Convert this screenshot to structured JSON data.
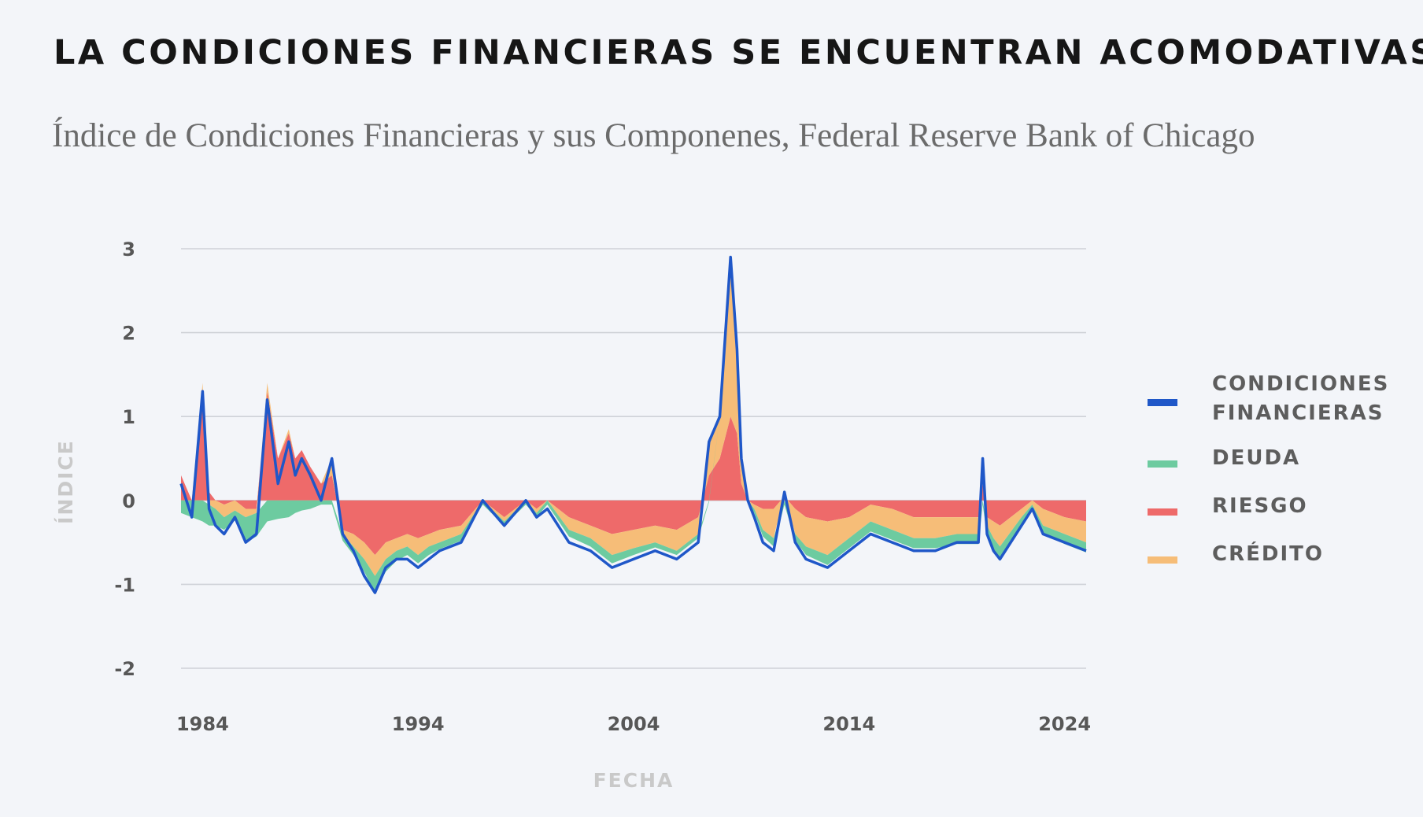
{
  "header": {
    "title": "LA CONDICIONES FINANCIERAS SE ENCUENTRAN ACOMODATIVAS",
    "subtitle": "Índice de Condiciones Financieras y sus Componenes, Federal Reserve Bank of Chicago"
  },
  "colors": {
    "condiciones": "#1f57c8",
    "deuda": "#6dcba0",
    "riesgo": "#ee6a6a",
    "credito": "#f6bd78",
    "grid": "#cfd2d8",
    "background": "#f3f5f9"
  },
  "legend": {
    "items": [
      {
        "label": "CONDICIONES FINANCIERAS",
        "color_key": "condiciones"
      },
      {
        "label": "DEUDA",
        "color_key": "deuda"
      },
      {
        "label": "RIESGO",
        "color_key": "riesgo"
      },
      {
        "label": "CRÉDITO",
        "color_key": "credito"
      }
    ]
  },
  "chart_data": {
    "type": "area",
    "title": "LA CONDICIONES FINANCIERAS SE ENCUENTRAN ACOMODATIVAS",
    "subtitle": "Índice de Condiciones Financieras y sus Componenes, Federal Reserve Bank of Chicago",
    "xlabel": "FECHA",
    "ylabel": "ÍNDICE",
    "xlim": [
      1983.0,
      2025.0
    ],
    "ylim": [
      -2,
      3
    ],
    "x_ticks": [
      1984,
      1994,
      2004,
      2014,
      2024
    ],
    "y_ticks": [
      3,
      2,
      1,
      0,
      -1,
      -2
    ],
    "y_tick_labels": [
      "3",
      "2",
      "1",
      "0",
      "-1",
      "-2"
    ],
    "grid": true,
    "legend_position": "right",
    "x": [
      1983.0,
      1983.5,
      1984.0,
      1984.3,
      1984.6,
      1985.0,
      1985.5,
      1986.0,
      1986.5,
      1987.0,
      1987.5,
      1988.0,
      1988.3,
      1988.6,
      1989.0,
      1989.5,
      1990.0,
      1990.5,
      1991.0,
      1991.5,
      1992.0,
      1992.5,
      1993.0,
      1993.5,
      1994.0,
      1994.5,
      1995.0,
      1996.0,
      1997.0,
      1998.0,
      1999.0,
      1999.5,
      2000.0,
      2001.0,
      2002.0,
      2003.0,
      2004.0,
      2005.0,
      2006.0,
      2007.0,
      2007.5,
      2008.0,
      2008.5,
      2008.8,
      2009.0,
      2009.3,
      2009.6,
      2010.0,
      2010.5,
      2011.0,
      2011.5,
      2012.0,
      2013.0,
      2014.0,
      2015.0,
      2016.0,
      2017.0,
      2018.0,
      2019.0,
      2020.0,
      2020.2,
      2020.4,
      2020.7,
      2021.0,
      2022.0,
      2022.5,
      2023.0,
      2024.0,
      2025.0
    ],
    "series": [
      {
        "name": "CONDICIONES FINANCIERAS",
        "values": [
          0.2,
          -0.2,
          1.3,
          -0.1,
          -0.3,
          -0.4,
          -0.2,
          -0.5,
          -0.4,
          1.2,
          0.2,
          0.7,
          0.3,
          0.5,
          0.3,
          0.0,
          0.5,
          -0.4,
          -0.6,
          -0.9,
          -1.1,
          -0.8,
          -0.7,
          -0.7,
          -0.8,
          -0.7,
          -0.6,
          -0.5,
          0.0,
          -0.3,
          0.0,
          -0.2,
          -0.1,
          -0.5,
          -0.6,
          -0.8,
          -0.7,
          -0.6,
          -0.7,
          -0.5,
          0.7,
          1.0,
          2.9,
          1.8,
          0.5,
          0.0,
          -0.2,
          -0.5,
          -0.6,
          0.1,
          -0.5,
          -0.7,
          -0.8,
          -0.6,
          -0.4,
          -0.5,
          -0.6,
          -0.6,
          -0.5,
          -0.5,
          0.5,
          -0.4,
          -0.6,
          -0.7,
          -0.3,
          -0.1,
          -0.4,
          -0.5,
          -0.6
        ]
      },
      {
        "name": "DEUDA",
        "values": [
          -0.15,
          -0.2,
          -0.25,
          -0.25,
          -0.2,
          -0.15,
          -0.12,
          -0.3,
          -0.28,
          -0.25,
          -0.22,
          -0.2,
          -0.15,
          -0.12,
          -0.1,
          -0.05,
          -0.05,
          -0.08,
          -0.1,
          -0.15,
          -0.2,
          -0.15,
          -0.12,
          -0.1,
          -0.1,
          -0.1,
          -0.08,
          -0.08,
          -0.05,
          -0.05,
          -0.05,
          -0.05,
          -0.05,
          -0.08,
          -0.1,
          -0.1,
          -0.08,
          -0.06,
          -0.05,
          -0.05,
          -0.02,
          0.0,
          0.0,
          0.0,
          0.0,
          -0.02,
          -0.05,
          -0.08,
          -0.1,
          -0.05,
          -0.08,
          -0.1,
          -0.12,
          -0.12,
          -0.12,
          -0.12,
          -0.12,
          -0.12,
          -0.12,
          -0.12,
          -0.05,
          -0.12,
          -0.12,
          -0.15,
          -0.12,
          -0.05,
          -0.1,
          -0.12,
          -0.12
        ]
      },
      {
        "name": "RIESGO",
        "values": [
          0.3,
          0.0,
          1.3,
          0.1,
          0.0,
          -0.05,
          0.0,
          -0.1,
          -0.1,
          1.3,
          0.5,
          0.8,
          0.5,
          0.6,
          0.4,
          0.2,
          0.3,
          -0.35,
          -0.4,
          -0.5,
          -0.65,
          -0.5,
          -0.45,
          -0.4,
          -0.45,
          -0.4,
          -0.35,
          -0.3,
          0.0,
          -0.2,
          0.0,
          -0.1,
          0.0,
          -0.2,
          -0.3,
          -0.4,
          -0.35,
          -0.3,
          -0.35,
          -0.2,
          0.3,
          0.5,
          1.0,
          0.8,
          0.2,
          0.0,
          -0.05,
          -0.1,
          -0.1,
          0.05,
          -0.1,
          -0.2,
          -0.25,
          -0.2,
          -0.05,
          -0.1,
          -0.2,
          -0.2,
          -0.2,
          -0.2,
          0.2,
          -0.2,
          -0.25,
          -0.3,
          -0.1,
          0.0,
          -0.1,
          -0.2,
          -0.25
        ]
      },
      {
        "name": "CRÉDITO",
        "values": [
          0.0,
          0.0,
          0.1,
          -0.05,
          -0.1,
          -0.15,
          -0.12,
          -0.1,
          -0.05,
          0.1,
          0.0,
          0.05,
          0.0,
          0.0,
          0.0,
          0.0,
          0.2,
          -0.05,
          -0.15,
          -0.2,
          -0.25,
          -0.2,
          -0.15,
          -0.15,
          -0.2,
          -0.15,
          -0.15,
          -0.1,
          0.0,
          -0.05,
          0.0,
          -0.05,
          0.0,
          -0.15,
          -0.15,
          -0.25,
          -0.22,
          -0.2,
          -0.25,
          -0.2,
          0.4,
          0.5,
          1.8,
          1.0,
          0.3,
          0.0,
          -0.05,
          -0.25,
          -0.35,
          0.05,
          -0.3,
          -0.35,
          -0.4,
          -0.25,
          -0.2,
          -0.25,
          -0.25,
          -0.25,
          -0.2,
          -0.2,
          0.25,
          -0.1,
          -0.2,
          -0.25,
          -0.1,
          -0.05,
          -0.2,
          -0.2,
          -0.25
        ]
      }
    ]
  }
}
